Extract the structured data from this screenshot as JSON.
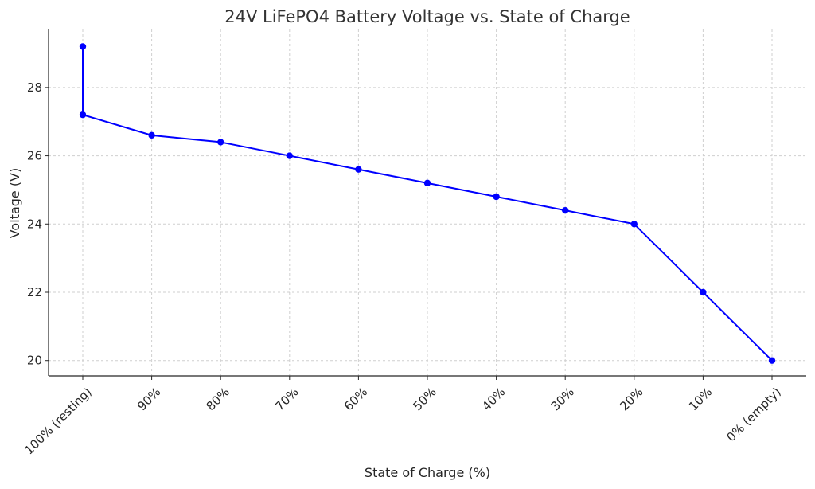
{
  "chart_data": {
    "type": "line",
    "title": "24V LiFePO4 Battery Voltage vs. State of Charge",
    "xlabel": "State of Charge (%)",
    "ylabel": "Voltage (V)",
    "ylim": [
      19.55,
      29.7
    ],
    "yticks": [
      20,
      22,
      24,
      26,
      28
    ],
    "grid": true,
    "legend": "none",
    "colors": {
      "line": "#0000ff",
      "marker": "#0000ff",
      "grid": "#cfcfcf",
      "axis": "#262626",
      "text": "#262626",
      "title": "#333333"
    },
    "categories": [
      "100% (resting)",
      "90%",
      "80%",
      "70%",
      "60%",
      "50%",
      "40%",
      "30%",
      "20%",
      "10%",
      "0% (empty)"
    ],
    "series": [
      {
        "points": [
          {
            "x": "100% (resting)",
            "y": 29.2
          },
          {
            "x": "100% (resting)",
            "y": 27.2
          },
          {
            "x": "90%",
            "y": 26.6
          },
          {
            "x": "80%",
            "y": 26.4
          },
          {
            "x": "70%",
            "y": 26.0
          },
          {
            "x": "60%",
            "y": 25.6
          },
          {
            "x": "50%",
            "y": 25.2
          },
          {
            "x": "40%",
            "y": 24.8
          },
          {
            "x": "30%",
            "y": 24.4
          },
          {
            "x": "20%",
            "y": 24.0
          },
          {
            "x": "10%",
            "y": 22.0
          },
          {
            "x": "0% (empty)",
            "y": 20.0
          }
        ]
      }
    ]
  }
}
